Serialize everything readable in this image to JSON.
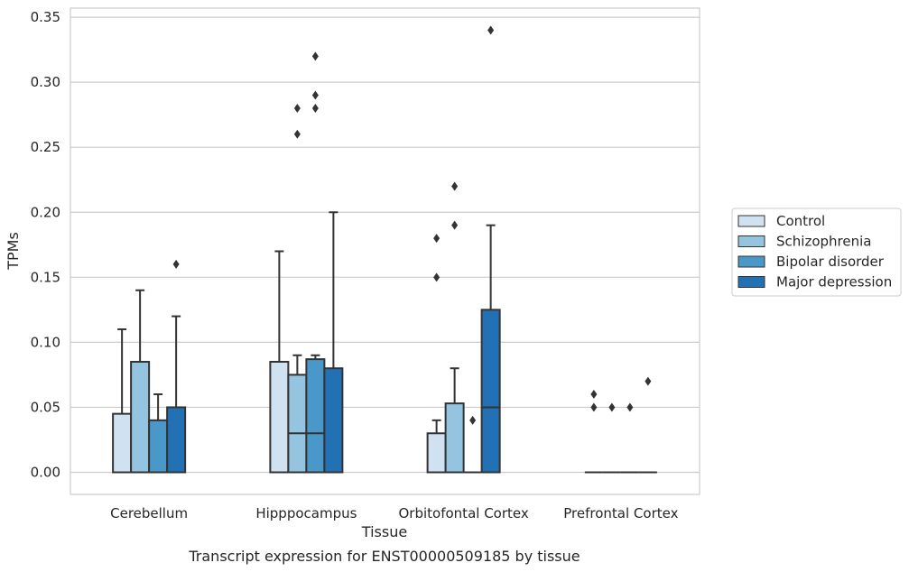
{
  "chart_data": {
    "type": "box",
    "xlabel": "Tissue",
    "ylabel": "TPMs",
    "caption": "Transcript expression for ENST00000509185 by tissue",
    "ylim": [
      -0.017,
      0.357
    ],
    "yticks": [
      "0.00",
      "0.05",
      "0.10",
      "0.15",
      "0.20",
      "0.25",
      "0.30",
      "0.35"
    ],
    "ytick_values": [
      0,
      0.05,
      0.1,
      0.15,
      0.2,
      0.25,
      0.3,
      0.35
    ],
    "grid": true,
    "legend_position": "right",
    "categories": [
      "Cerebellum",
      "Hipppocampus",
      "Orbitofontal Cortex",
      "Prefrontal Cortex"
    ],
    "series": [
      {
        "name": "Control",
        "color": "#d0e1f2",
        "boxes": [
          {
            "min": 0,
            "q1": 0,
            "median": 0,
            "q3": 0.045,
            "max": 0.11,
            "outliers": []
          },
          {
            "min": 0,
            "q1": 0,
            "median": 0,
            "q3": 0.085,
            "max": 0.17,
            "outliers": []
          },
          {
            "min": 0,
            "q1": 0,
            "median": 0,
            "q3": 0.03,
            "max": 0.04,
            "outliers": [
              0.15,
              0.18
            ]
          },
          {
            "min": 0,
            "q1": 0,
            "median": 0,
            "q3": 0,
            "max": 0,
            "outliers": [
              0.05,
              0.06
            ]
          }
        ]
      },
      {
        "name": "Schizophrenia",
        "color": "#94c4df",
        "boxes": [
          {
            "min": 0,
            "q1": 0,
            "median": 0,
            "q3": 0.085,
            "max": 0.14,
            "outliers": []
          },
          {
            "min": 0,
            "q1": 0,
            "median": 0.03,
            "q3": 0.075,
            "max": 0.09,
            "outliers": [
              0.26,
              0.28
            ]
          },
          {
            "min": 0,
            "q1": 0,
            "median": 0,
            "q3": 0.053,
            "max": 0.08,
            "outliers": [
              0.19,
              0.22
            ]
          },
          {
            "min": 0,
            "q1": 0,
            "median": 0,
            "q3": 0,
            "max": 0,
            "outliers": [
              0.05
            ]
          }
        ]
      },
      {
        "name": "Bipolar disorder",
        "color": "#4a98c9",
        "boxes": [
          {
            "min": 0,
            "q1": 0,
            "median": 0,
            "q3": 0.04,
            "max": 0.06,
            "outliers": []
          },
          {
            "min": 0,
            "q1": 0,
            "median": 0.03,
            "q3": 0.087,
            "max": 0.09,
            "outliers": [
              0.28,
              0.29,
              0.32
            ]
          },
          {
            "min": 0,
            "q1": 0,
            "median": 0,
            "q3": 0,
            "max": 0,
            "outliers": [
              0.04
            ]
          },
          {
            "min": 0,
            "q1": 0,
            "median": 0,
            "q3": 0,
            "max": 0,
            "outliers": [
              0.05
            ]
          }
        ]
      },
      {
        "name": "Major depression",
        "color": "#2271b5",
        "boxes": [
          {
            "min": 0,
            "q1": 0,
            "median": 0,
            "q3": 0.05,
            "max": 0.12,
            "outliers": [
              0.16
            ]
          },
          {
            "min": 0,
            "q1": 0,
            "median": 0,
            "q3": 0.08,
            "max": 0.2,
            "outliers": []
          },
          {
            "min": 0,
            "q1": 0,
            "median": 0.05,
            "q3": 0.125,
            "max": 0.19,
            "outliers": [
              0.34
            ]
          },
          {
            "min": 0,
            "q1": 0,
            "median": 0,
            "q3": 0,
            "max": 0,
            "outliers": [
              0.07
            ]
          }
        ]
      }
    ]
  }
}
